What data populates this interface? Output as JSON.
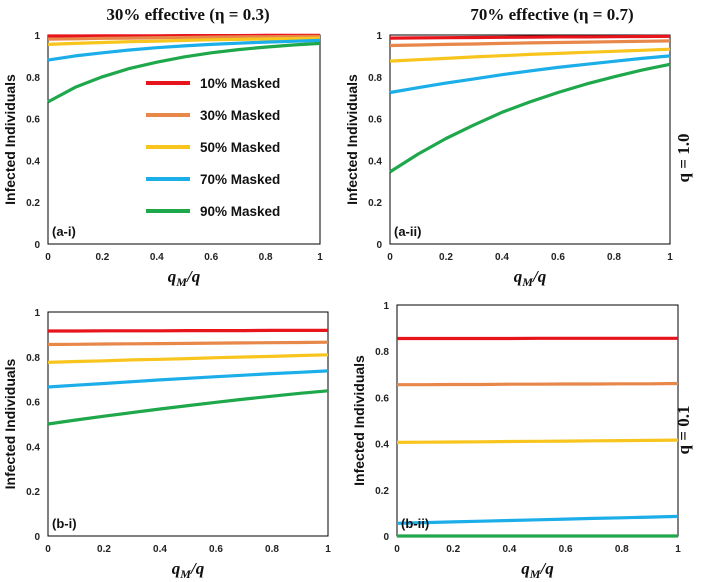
{
  "titles": {
    "col_left": "30% effective (η = 0.3)",
    "col_right": "70% effective (η = 0.7)",
    "row_top": "q = 1.0",
    "row_bottom": "q = 0.1"
  },
  "legend": [
    {
      "label": "10% Masked",
      "color": "#e8141b"
    },
    {
      "label": "30% Masked",
      "color": "#e8874a"
    },
    {
      "label": "50% Masked",
      "color": "#f7c51e"
    },
    {
      "label": "70% Masked",
      "color": "#1caee9"
    },
    {
      "label": "90% Masked",
      "color": "#1ea84b"
    }
  ],
  "chart_data": [
    {
      "type": "line",
      "panel": "(a-i)",
      "xlabel": "q_M/q",
      "ylabel": "Infected Individuals",
      "xlim": [
        0,
        1
      ],
      "ylim": [
        0,
        1
      ],
      "xticks": [
        "0",
        "0.2",
        "0.4",
        "0.6",
        "0.8",
        "1"
      ],
      "yticks": [
        "0",
        "0.2",
        "0.4",
        "0.6",
        "0.8",
        "1"
      ],
      "x": [
        0,
        0.1,
        0.2,
        0.3,
        0.4,
        0.5,
        0.6,
        0.7,
        0.8,
        0.9,
        1
      ],
      "series": [
        {
          "name": "10% Masked",
          "values": [
            0.995,
            0.995,
            0.996,
            0.996,
            0.996,
            0.997,
            0.997,
            0.997,
            0.998,
            0.998,
            0.998
          ]
        },
        {
          "name": "30% Masked",
          "values": [
            0.98,
            0.982,
            0.984,
            0.985,
            0.987,
            0.988,
            0.99,
            0.991,
            0.992,
            0.993,
            0.994
          ]
        },
        {
          "name": "50% Masked",
          "values": [
            0.955,
            0.96,
            0.964,
            0.968,
            0.971,
            0.974,
            0.977,
            0.979,
            0.981,
            0.983,
            0.985
          ]
        },
        {
          "name": "70% Masked",
          "values": [
            0.88,
            0.9,
            0.915,
            0.928,
            0.939,
            0.948,
            0.955,
            0.961,
            0.966,
            0.97,
            0.974
          ]
        },
        {
          "name": "90% Masked",
          "values": [
            0.68,
            0.75,
            0.8,
            0.84,
            0.87,
            0.895,
            0.915,
            0.93,
            0.942,
            0.952,
            0.96
          ]
        }
      ]
    },
    {
      "type": "line",
      "panel": "(a-ii)",
      "xlabel": "q_M/q",
      "ylabel": "Infected Individuals",
      "xlim": [
        0,
        1
      ],
      "ylim": [
        0,
        1
      ],
      "xticks": [
        "0",
        "0.2",
        "0.4",
        "0.6",
        "0.8",
        "1"
      ],
      "yticks": [
        "0",
        "0.2",
        "0.4",
        "0.6",
        "0.8",
        "1"
      ],
      "x": [
        0,
        0.1,
        0.2,
        0.3,
        0.4,
        0.5,
        0.6,
        0.7,
        0.8,
        0.9,
        1
      ],
      "series": [
        {
          "name": "10% Masked",
          "values": [
            0.985,
            0.986,
            0.987,
            0.988,
            0.989,
            0.99,
            0.991,
            0.991,
            0.992,
            0.993,
            0.994
          ]
        },
        {
          "name": "30% Masked",
          "values": [
            0.95,
            0.952,
            0.955,
            0.957,
            0.96,
            0.962,
            0.964,
            0.966,
            0.968,
            0.97,
            0.972
          ]
        },
        {
          "name": "50% Masked",
          "values": [
            0.875,
            0.882,
            0.888,
            0.895,
            0.901,
            0.907,
            0.912,
            0.917,
            0.922,
            0.927,
            0.932
          ]
        },
        {
          "name": "70% Masked",
          "values": [
            0.725,
            0.748,
            0.77,
            0.79,
            0.81,
            0.828,
            0.845,
            0.86,
            0.874,
            0.888,
            0.9
          ]
        },
        {
          "name": "90% Masked",
          "values": [
            0.345,
            0.43,
            0.505,
            0.57,
            0.63,
            0.68,
            0.725,
            0.765,
            0.8,
            0.832,
            0.86
          ]
        }
      ]
    },
    {
      "type": "line",
      "panel": "(b-i)",
      "xlabel": "q_M/q",
      "ylabel": "Infected Individuals",
      "xlim": [
        0,
        1
      ],
      "ylim": [
        0,
        1
      ],
      "xticks": [
        "0",
        "0.2",
        "0.4",
        "0.6",
        "0.8",
        "1"
      ],
      "yticks": [
        "0",
        "0.2",
        "0.4",
        "0.6",
        "0.8",
        "1"
      ],
      "x": [
        0,
        0.1,
        0.2,
        0.3,
        0.4,
        0.5,
        0.6,
        0.7,
        0.8,
        0.9,
        1
      ],
      "series": [
        {
          "name": "10% Masked",
          "values": [
            0.915,
            0.915,
            0.916,
            0.916,
            0.916,
            0.917,
            0.917,
            0.917,
            0.918,
            0.918,
            0.918
          ]
        },
        {
          "name": "30% Masked",
          "values": [
            0.855,
            0.856,
            0.857,
            0.858,
            0.859,
            0.86,
            0.861,
            0.862,
            0.863,
            0.864,
            0.865
          ]
        },
        {
          "name": "50% Masked",
          "values": [
            0.775,
            0.779,
            0.782,
            0.786,
            0.789,
            0.792,
            0.796,
            0.799,
            0.802,
            0.806,
            0.809
          ]
        },
        {
          "name": "70% Masked",
          "values": [
            0.665,
            0.673,
            0.681,
            0.689,
            0.697,
            0.704,
            0.711,
            0.718,
            0.725,
            0.731,
            0.737
          ]
        },
        {
          "name": "90% Masked",
          "values": [
            0.5,
            0.518,
            0.535,
            0.551,
            0.567,
            0.582,
            0.597,
            0.611,
            0.624,
            0.637,
            0.648
          ]
        }
      ]
    },
    {
      "type": "line",
      "panel": "(b-ii)",
      "xlabel": "q_M/q",
      "ylabel": "Infected Individuals",
      "xlim": [
        0,
        1
      ],
      "ylim": [
        0,
        1
      ],
      "xticks": [
        "0",
        "0.2",
        "0.4",
        "0.6",
        "0.8",
        "1"
      ],
      "yticks": [
        "0",
        "0.2",
        "0.4",
        "0.6",
        "0.8",
        "1"
      ],
      "x": [
        0,
        0.1,
        0.2,
        0.3,
        0.4,
        0.5,
        0.6,
        0.7,
        0.8,
        0.9,
        1
      ],
      "series": [
        {
          "name": "10% Masked",
          "values": [
            0.855,
            0.855,
            0.855,
            0.855,
            0.855,
            0.856,
            0.856,
            0.856,
            0.856,
            0.856,
            0.856
          ]
        },
        {
          "name": "30% Masked",
          "values": [
            0.655,
            0.655,
            0.656,
            0.656,
            0.657,
            0.657,
            0.658,
            0.658,
            0.659,
            0.659,
            0.66
          ]
        },
        {
          "name": "50% Masked",
          "values": [
            0.405,
            0.406,
            0.407,
            0.408,
            0.409,
            0.41,
            0.411,
            0.412,
            0.413,
            0.414,
            0.415
          ]
        },
        {
          "name": "70% Masked",
          "values": [
            0.055,
            0.058,
            0.061,
            0.064,
            0.067,
            0.07,
            0.073,
            0.076,
            0.079,
            0.082,
            0.085
          ]
        },
        {
          "name": "90% Masked",
          "values": [
            0,
            0,
            0,
            0,
            0,
            0,
            0,
            0,
            0,
            0,
            0
          ]
        }
      ]
    }
  ]
}
